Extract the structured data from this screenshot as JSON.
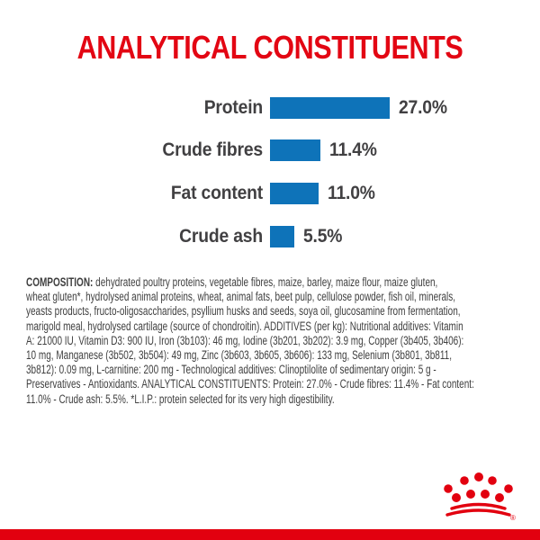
{
  "title": {
    "text": "ANALYTICAL CONSTITUENTS",
    "color": "#e30613"
  },
  "chart_data": {
    "type": "bar",
    "orientation": "horizontal",
    "title": "ANALYTICAL CONSTITUENTS",
    "categories": [
      "Protein",
      "Crude fibres",
      "Fat content",
      "Crude ash"
    ],
    "values": [
      27.0,
      11.4,
      11.0,
      5.5
    ],
    "value_labels": [
      "27.0%",
      "11.4%",
      "11.0%",
      "5.5%"
    ],
    "unit": "%",
    "xlim": [
      0,
      30
    ],
    "grid": false,
    "axes_visible": false,
    "value_label_position": "right-of-bar",
    "bar_color": "#0e73b9",
    "label_color": "#414042"
  },
  "composition": {
    "color": "#3f3f3f",
    "lines": [
      {
        "bold": "COMPOSITION:",
        "text": "dehydrated poultry proteins, vegetable fibres, maize, barley, maize flour, maize gluten,"
      },
      {
        "text": "wheat gluten*, hydrolysed animal proteins, wheat, animal fats, beet pulp, cellulose powder, fish oil, minerals,"
      },
      {
        "text": "yeasts products, fructo-oligosaccharides, psyllium husks and seeds, soya oil, glucosamine from fermentation,"
      },
      {
        "text": "marigold meal, hydrolysed cartilage (source of chondroitin). ADDITIVES (per kg): Nutritional additives: Vitamin"
      },
      {
        "text": "A: 21000 IU, Vitamin D3: 900 IU, Iron (3b103): 46 mg, Iodine (3b201, 3b202): 3.9 mg, Copper (3b405, 3b406):"
      },
      {
        "text": "10 mg, Manganese (3b502, 3b504): 49 mg, Zinc (3b603, 3b605, 3b606): 133 mg, Selenium (3b801, 3b811,"
      },
      {
        "text": "3b812): 0.09 mg, L-carnitine: 200 mg - Technological additives: Clinoptilolite of sedimentary origin: 5 g -"
      },
      {
        "text": "Preservatives - Antioxidants. ANALYTICAL CONSTITUENTS: Protein: 27.0% - Crude fibres: 11.4% - Fat content:"
      },
      {
        "text": "11.0% - Crude ash: 5.5%. *L.I.P.: protein selected for its very high digestibility."
      }
    ]
  },
  "logo": {
    "name": "royal-canin-crown",
    "color": "#e2000f",
    "registered_mark": "®"
  },
  "footer": {
    "bottom_bar_color": "#e2000f"
  }
}
